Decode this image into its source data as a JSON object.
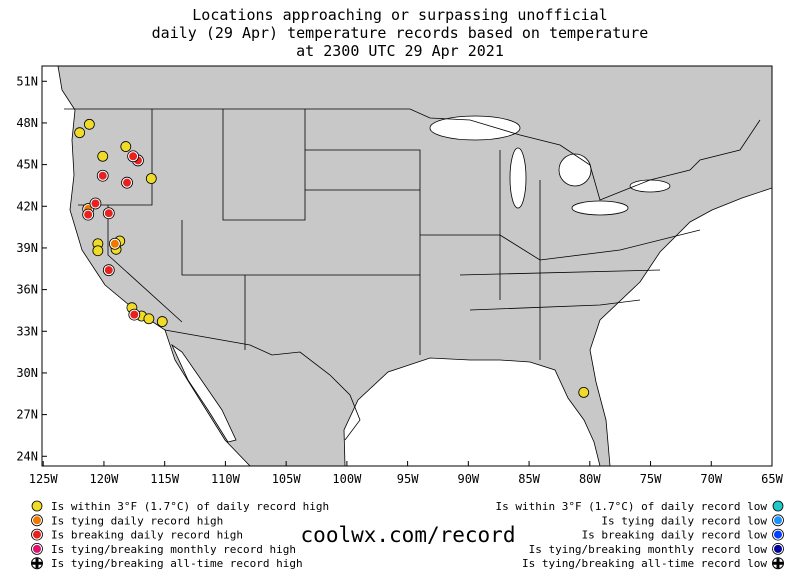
{
  "title": [
    "Locations approaching or surpassing unofficial",
    "daily (29 Apr) temperature records based on temperature",
    "at 2300 UTC 29 Apr 2021"
  ],
  "map": {
    "xlim": [
      -125.1,
      -65
    ],
    "ylim": [
      23.3,
      52.1
    ],
    "xticks": [
      {
        "value": -125,
        "label": "125W"
      },
      {
        "value": -120,
        "label": "120W"
      },
      {
        "value": -115,
        "label": "115W"
      },
      {
        "value": -110,
        "label": "110W"
      },
      {
        "value": -105,
        "label": "105W"
      },
      {
        "value": -100,
        "label": "100W"
      },
      {
        "value": -95,
        "label": "95W"
      },
      {
        "value": -90,
        "label": "90W"
      },
      {
        "value": -85,
        "label": "85W"
      },
      {
        "value": -80,
        "label": "80W"
      },
      {
        "value": -75,
        "label": "75W"
      },
      {
        "value": -70,
        "label": "70W"
      },
      {
        "value": -65,
        "label": "65W"
      }
    ],
    "yticks": [
      {
        "value": 51,
        "label": "51N"
      },
      {
        "value": 48,
        "label": "48N"
      },
      {
        "value": 45,
        "label": "45N"
      },
      {
        "value": 42,
        "label": "42N"
      },
      {
        "value": 39,
        "label": "39N"
      },
      {
        "value": 36,
        "label": "36N"
      },
      {
        "value": 33,
        "label": "33N"
      },
      {
        "value": 30,
        "label": "30N"
      },
      {
        "value": 27,
        "label": "27N"
      },
      {
        "value": 24,
        "label": "24N"
      }
    ]
  },
  "points": [
    {
      "lon": -121.2,
      "lat": 47.9,
      "category": 0
    },
    {
      "lon": -122.0,
      "lat": 47.3,
      "category": 0
    },
    {
      "lon": -120.1,
      "lat": 45.6,
      "category": 0
    },
    {
      "lon": -118.2,
      "lat": 46.3,
      "category": 0
    },
    {
      "lon": -116.1,
      "lat": 44.0,
      "category": 0
    },
    {
      "lon": -120.5,
      "lat": 39.3,
      "category": 0
    },
    {
      "lon": -120.5,
      "lat": 38.8,
      "category": 0
    },
    {
      "lon": -118.7,
      "lat": 39.5,
      "category": 0
    },
    {
      "lon": -119.0,
      "lat": 38.9,
      "category": 0
    },
    {
      "lon": -117.7,
      "lat": 34.7,
      "category": 0
    },
    {
      "lon": -116.9,
      "lat": 34.1,
      "category": 0
    },
    {
      "lon": -116.3,
      "lat": 33.9,
      "category": 0
    },
    {
      "lon": -115.2,
      "lat": 33.7,
      "category": 0
    },
    {
      "lon": -80.5,
      "lat": 28.6,
      "category": 0
    },
    {
      "lon": -121.3,
      "lat": 41.8,
      "category": 1
    },
    {
      "lon": -119.1,
      "lat": 39.3,
      "category": 1
    },
    {
      "lon": -120.1,
      "lat": 44.2,
      "category": 2
    },
    {
      "lon": -120.7,
      "lat": 42.2,
      "category": 2
    },
    {
      "lon": -121.3,
      "lat": 41.4,
      "category": 2
    },
    {
      "lon": -119.6,
      "lat": 41.5,
      "category": 2
    },
    {
      "lon": -118.1,
      "lat": 43.7,
      "category": 2
    },
    {
      "lon": -119.6,
      "lat": 37.4,
      "category": 2
    },
    {
      "lon": -117.5,
      "lat": 34.2,
      "category": 2
    },
    {
      "lon": -117.2,
      "lat": 45.3,
      "category": 2
    },
    {
      "lon": -117.6,
      "lat": 45.6,
      "category": 2
    }
  ],
  "legend_high": [
    {
      "label": "Is within 3°F (1.7°C) of daily record high",
      "color": "#f0dc28"
    },
    {
      "label": "Is tying daily record high",
      "color": "#f07800"
    },
    {
      "label": "Is breaking daily record high",
      "color": "#e82020"
    },
    {
      "label": "Is tying/breaking monthly record high",
      "color": "#e0106e"
    },
    {
      "label": "Is tying/breaking all-time record high",
      "color": "#000000"
    }
  ],
  "legend_low": [
    {
      "label": "Is within 3°F (1.7°C) of daily record low",
      "color": "#20c8c8"
    },
    {
      "label": "Is tying daily record low",
      "color": "#1e90ff"
    },
    {
      "label": "Is breaking daily record low",
      "color": "#0040ff"
    },
    {
      "label": "Is tying/breaking monthly record low",
      "color": "#0000a0"
    },
    {
      "label": "Is tying/breaking all-time record low",
      "color": "#000000"
    }
  ],
  "site": "coolwx.com/record"
}
